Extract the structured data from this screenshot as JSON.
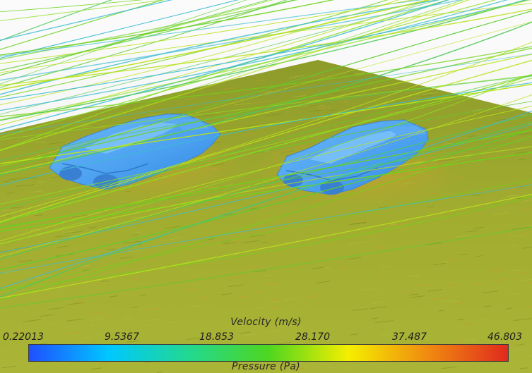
{
  "legend": {
    "title": "Velocity (m/s)",
    "secondary_title": "Pressure (Pa)",
    "ticks": [
      "0.22013",
      "9.5367",
      "18.853",
      "28.170",
      "37.487",
      "46.803"
    ],
    "colors": [
      "#1f4fff",
      "#00c8ff",
      "#22d890",
      "#4ed620",
      "#f4ee00",
      "#f08a10",
      "#e02a1e"
    ]
  },
  "scene": {
    "ground_color": "#9aa82c",
    "vehicle_color": "#4aa0f0",
    "streamline_color": "#6ed21c"
  }
}
